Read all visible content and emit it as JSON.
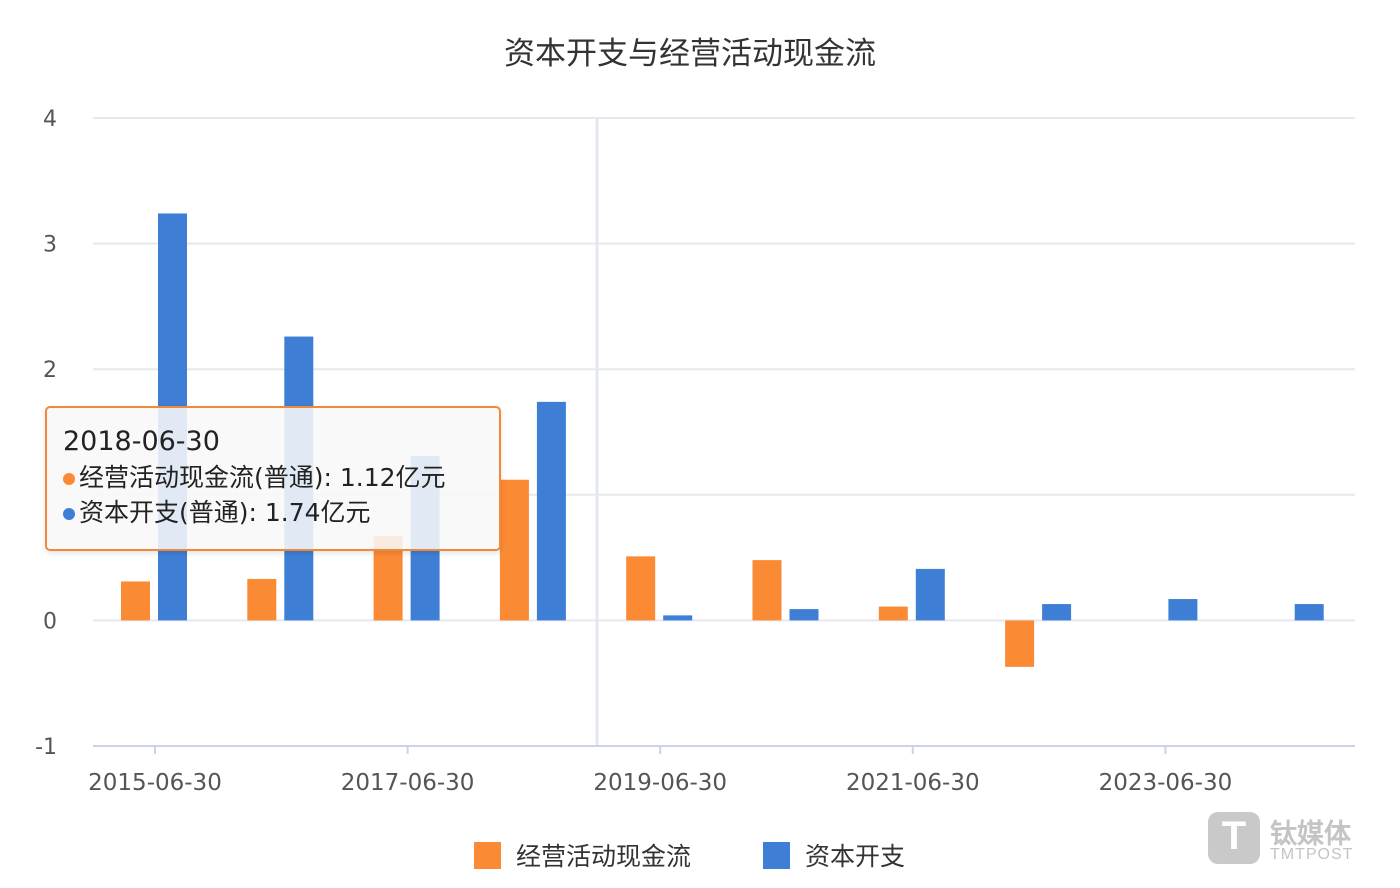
{
  "chart_data": {
    "type": "bar",
    "title": "资本开支与经营活动现金流",
    "categories": [
      "2015-06-30",
      "2016-06-30",
      "2017-06-30",
      "2018-06-30",
      "2019-06-30",
      "2020-06-30",
      "2021-06-30",
      "2022-06-30",
      "2023-06-30",
      "2024-06-30"
    ],
    "xtick_labels": [
      "2015-06-30",
      "2017-06-30",
      "2019-06-30",
      "2021-06-30",
      "2023-06-30"
    ],
    "yticks": [
      -1,
      0,
      2,
      3,
      4
    ],
    "ylim": [
      -1,
      4
    ],
    "grid": true,
    "legend_position": "bottom",
    "series": [
      {
        "name": "经营活动现金流",
        "color": "#fb8a35",
        "values": [
          0.31,
          0.33,
          0.67,
          1.12,
          0.51,
          0.48,
          0.11,
          -0.37,
          null,
          null
        ]
      },
      {
        "name": "资本开支",
        "color": "#3e7fd5",
        "values": [
          3.24,
          2.26,
          1.31,
          1.74,
          0.04,
          0.09,
          0.41,
          0.13,
          0.17,
          0.13
        ]
      }
    ]
  },
  "tooltip": {
    "date": "2018-06-30",
    "line1": "经营活动现金流(普通): 1.12亿元",
    "line2": "资本开支(普通): 1.74亿元",
    "dot1_color": "#fb8a35",
    "dot2_color": "#3e7fd5"
  },
  "watermark": {
    "icon_letter": "T",
    "brand_cn": "钛媒体",
    "brand_en": "TMTPOST"
  }
}
